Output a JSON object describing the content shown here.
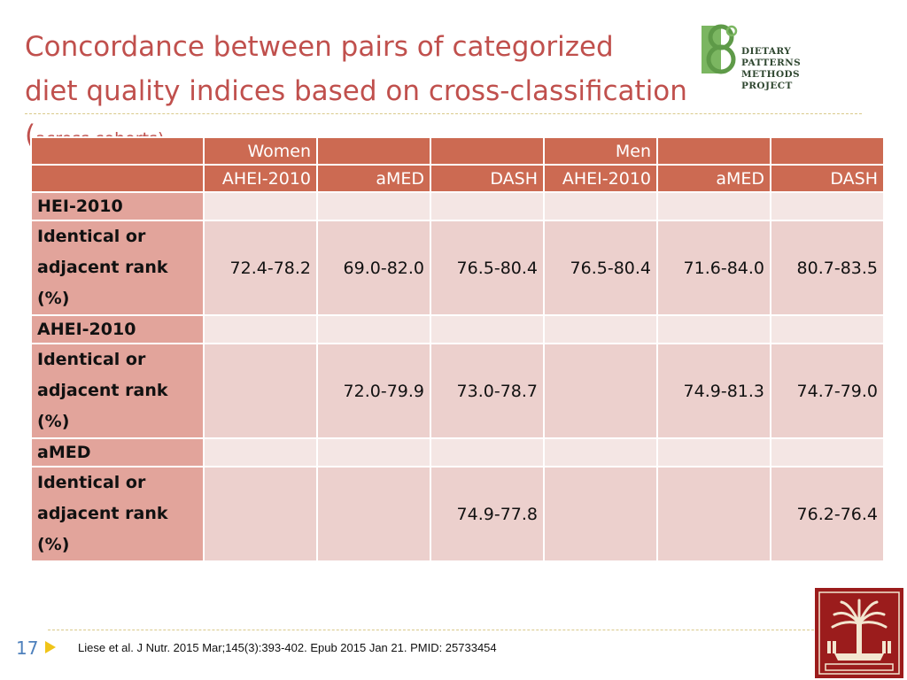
{
  "title": {
    "line1": "Concordance between pairs of categorized",
    "line2": "diet quality indices based on cross-classification (",
    "suffix": "across cohorts)"
  },
  "logo": {
    "line1": "Dietary Patterns",
    "line2": "Methods Project"
  },
  "table": {
    "group_headers": [
      "Women",
      "",
      "",
      "Men",
      "",
      ""
    ],
    "column_headers": [
      "AHEI-2010",
      "aMED",
      "DASH",
      "AHEI-2010",
      "aMED",
      "DASH"
    ],
    "sections": [
      {
        "label": "HEI-2010",
        "row_label": "Identical or adjacent rank (%)",
        "values": [
          "72.4-78.2",
          "69.0-82.0",
          "76.5-80.4",
          "76.5-80.4",
          "71.6-84.0",
          "80.7-83.5"
        ]
      },
      {
        "label": "AHEI-2010",
        "row_label": "Identical or adjacent rank (%)",
        "values": [
          "",
          "72.0-79.9",
          "73.0-78.7",
          "",
          "74.9-81.3",
          "74.7-79.0"
        ]
      },
      {
        "label": "aMED",
        "row_label": "Identical or adjacent rank (%)",
        "values": [
          "",
          "",
          "74.9-77.8",
          "",
          "",
          "76.2-76.4"
        ]
      }
    ]
  },
  "footer": {
    "page_number": "17",
    "citation": "Liese et al. J Nutr. 2015 Mar;145(3):393-402. Epub 2015 Jan 21. PMID:  25733454"
  },
  "colors": {
    "title": "#c0504d",
    "header_bg": "#cc6a52",
    "row_header_bg": "#e2a49b",
    "data_bg": "#ecd0cd",
    "section_bg": "#f4e6e4",
    "seal": "#9b1c1c"
  }
}
